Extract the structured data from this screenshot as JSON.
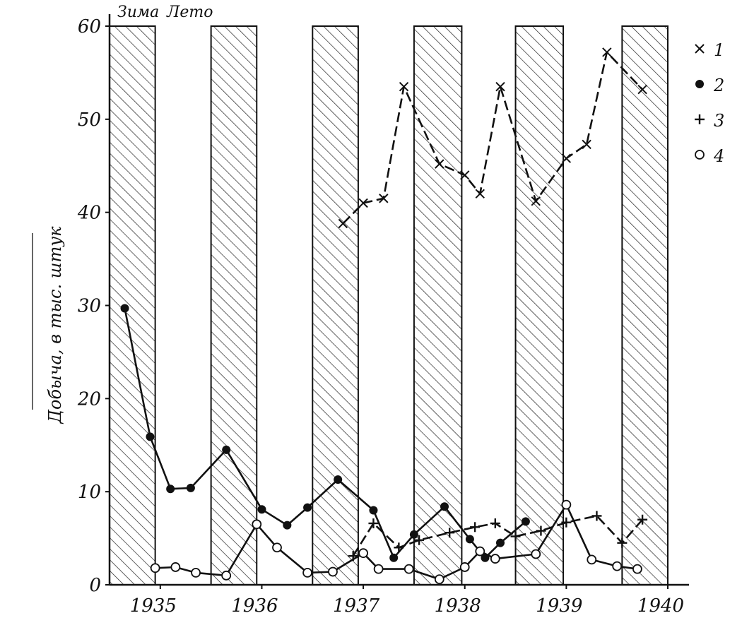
{
  "chart_data": {
    "type": "line",
    "season_labels": [
      "Зима",
      "Лето"
    ],
    "ylabel": "Добыча, в тыс. штук",
    "ylim": [
      0,
      60
    ],
    "yticks": [
      "0",
      "10",
      "20",
      "30",
      "40",
      "50",
      "60"
    ],
    "xlim": [
      1934.5,
      1940
    ],
    "xticks": [
      "1935",
      "1936",
      "1937",
      "1938",
      "1939",
      "1940"
    ],
    "winter_bands": [
      [
        1934.5,
        1934.95
      ],
      [
        1935.5,
        1935.95
      ],
      [
        1936.5,
        1936.95
      ],
      [
        1937.5,
        1937.97
      ],
      [
        1938.5,
        1938.97
      ],
      [
        1939.55,
        1940.0
      ]
    ],
    "series": [
      {
        "name": "1",
        "marker": "x",
        "x": [
          1936.8,
          1937.0,
          1937.2,
          1937.4,
          1937.75,
          1938.0,
          1938.15,
          1938.35,
          1938.7,
          1939.0,
          1939.2,
          1939.4,
          1939.75
        ],
        "y": [
          38.8,
          41.0,
          41.5,
          53.5,
          45.2,
          44.0,
          42.0,
          53.5,
          41.2,
          45.8,
          47.3,
          57.2,
          53.2
        ]
      },
      {
        "name": "2",
        "marker": "dot",
        "x": [
          1934.65,
          1934.9,
          1935.1,
          1935.3,
          1935.65,
          1936.0,
          1936.25,
          1936.45,
          1936.75,
          1937.1,
          1937.3,
          1937.5,
          1937.8,
          1938.05,
          1938.2,
          1938.35,
          1938.6
        ],
        "y": [
          29.7,
          15.9,
          10.3,
          10.4,
          14.5,
          8.1,
          6.4,
          8.3,
          11.3,
          8.0,
          2.9,
          5.4,
          8.4,
          4.9,
          2.9,
          4.5,
          6.8
        ]
      },
      {
        "name": "3",
        "marker": "plus",
        "x": [
          1936.9,
          1937.1,
          1937.35,
          1937.55,
          1937.85,
          1938.1,
          1938.3,
          1938.5,
          1938.75,
          1939.0,
          1939.3,
          1939.55,
          1939.75
        ],
        "y": [
          3.1,
          6.6,
          4.0,
          4.8,
          5.6,
          6.2,
          6.6,
          5.2,
          5.8,
          6.7,
          7.4,
          4.5,
          7.0
        ]
      },
      {
        "name": "4",
        "marker": "circle",
        "x": [
          1934.95,
          1935.15,
          1935.35,
          1935.65,
          1935.95,
          1936.15,
          1936.45,
          1936.7,
          1937.0,
          1937.15,
          1937.45,
          1937.75,
          1938.0,
          1938.15,
          1938.3,
          1938.7,
          1939.0,
          1939.25,
          1939.5,
          1939.7
        ],
        "y": [
          1.8,
          1.9,
          1.3,
          1.0,
          6.5,
          4.0,
          1.3,
          1.4,
          3.4,
          1.7,
          1.7,
          0.6,
          1.9,
          3.6,
          2.8,
          3.3,
          8.6,
          2.7,
          2.0,
          1.7
        ]
      }
    ]
  },
  "legend": [
    "1",
    "2",
    "3",
    "4"
  ]
}
